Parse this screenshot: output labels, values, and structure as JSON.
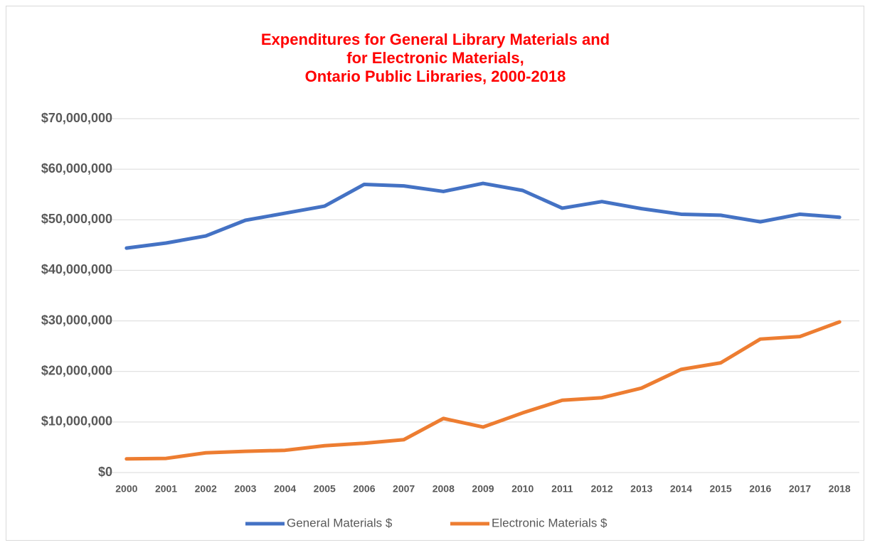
{
  "chart_data": {
    "type": "line",
    "title": [
      "Expenditures for General Library Materials and",
      "for Electronic Materials,",
      "Ontario Public Libraries, 2000-2018"
    ],
    "categories": [
      "2000",
      "2001",
      "2002",
      "2003",
      "2004",
      "2005",
      "2006",
      "2007",
      "2008",
      "2009",
      "2010",
      "2011",
      "2012",
      "2013",
      "2014",
      "2015",
      "2016",
      "2017",
      "2018"
    ],
    "series": [
      {
        "name": "General Materials $",
        "color": "#4472c4",
        "values": [
          44400000,
          45400000,
          46800000,
          49900000,
          51300000,
          52700000,
          57000000,
          56700000,
          55600000,
          57200000,
          55800000,
          52300000,
          53600000,
          52200000,
          51100000,
          50900000,
          49600000,
          51100000,
          50500000
        ]
      },
      {
        "name": "Electronic Materials $",
        "color": "#ed7d31",
        "values": [
          2700000,
          2800000,
          3900000,
          4200000,
          4400000,
          5300000,
          5800000,
          6500000,
          10700000,
          9000000,
          11800000,
          14300000,
          14800000,
          16700000,
          20400000,
          21700000,
          26400000,
          26900000,
          29800000
        ]
      }
    ],
    "ylim": [
      0,
      70000000
    ],
    "yticks": [
      {
        "value": 0,
        "label": "$0"
      },
      {
        "value": 10000000,
        "label": "$10,000,000"
      },
      {
        "value": 20000000,
        "label": "$20,000,000"
      },
      {
        "value": 30000000,
        "label": "$30,000,000"
      },
      {
        "value": 40000000,
        "label": "$40,000,000"
      },
      {
        "value": 50000000,
        "label": "$50,000,000"
      },
      {
        "value": 60000000,
        "label": "$60,000,000"
      },
      {
        "value": 70000000,
        "label": "$70,000,000"
      }
    ],
    "grid": true,
    "legend": "bottom"
  }
}
